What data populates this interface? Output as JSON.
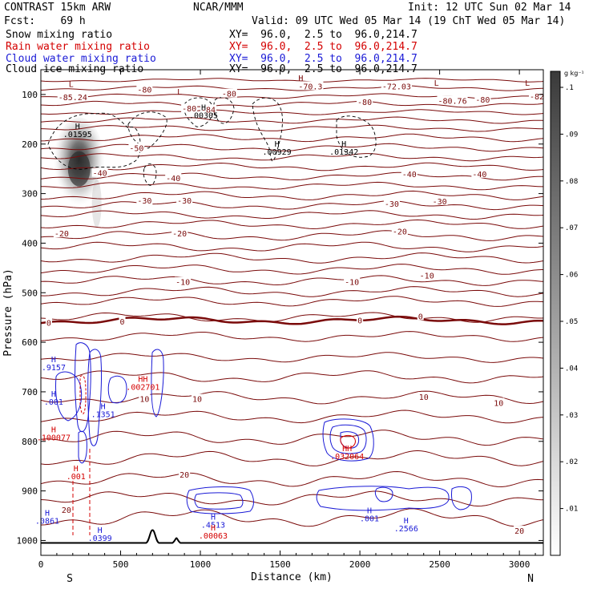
{
  "header": {
    "left_line1": "CONTRAST 15km ARW",
    "left_line2": "Fcst:    69 h",
    "center_line1": "NCAR/MMM",
    "init": "Init: 12 UTC Sun 02 Mar 14",
    "valid": "Valid: 09 UTC Wed 05 Mar 14 (19 ChT Wed 05 Mar 14)"
  },
  "fields": [
    {
      "name": "Snow mixing ratio",
      "xy": "XY=  96.0,  2.5 to  96.0,214.7",
      "color": "#000000"
    },
    {
      "name": "Rain water mixing ratio",
      "xy": "XY=  96.0,  2.5 to  96.0,214.7",
      "color": "#d40000"
    },
    {
      "name": "Cloud water mixing ratio",
      "xy": "XY=  96.0,  2.5 to  96.0,214.7",
      "color": "#1a1ad6"
    },
    {
      "name": "Cloud ice mixing ratio",
      "xy": "XY=  96.0,  2.5 to  96.0,214.7",
      "color": "#000000"
    }
  ],
  "colors": {
    "temperature": "#7a0a0a",
    "rain": "#d40000",
    "cloud_water": "#1a1ad6",
    "ice": "#000000",
    "terrain": "#000000"
  },
  "chart_data": {
    "type": "contour",
    "xlabel": "Distance (km)",
    "ylabel": "Pressure (hPa)",
    "xlim": [
      0,
      3150
    ],
    "ylim": [
      1030,
      50
    ],
    "x_ticks": [
      0,
      500,
      1000,
      1500,
      2000,
      2500,
      3000
    ],
    "x_tick_labels": [
      "0",
      "500",
      "1000",
      "1500",
      "2000",
      "2500",
      "3000"
    ],
    "y_ticks": [
      100,
      200,
      300,
      400,
      500,
      600,
      700,
      800,
      900,
      1000
    ],
    "y_tick_labels": [
      "100",
      "200",
      "300",
      "400",
      "500",
      "600",
      "700",
      "800",
      "900",
      "1000"
    ],
    "endpoints": {
      "start": "S",
      "end": "N"
    },
    "colorbar": {
      "unit": "g kg⁻¹",
      "ticks": [
        ".01",
        ".02",
        ".03",
        ".04",
        ".05",
        ".06",
        ".07",
        ".08",
        ".09",
        ".1"
      ]
    },
    "temperature_labels": [
      {
        "text": "-85.24",
        "x": 200,
        "p": 105
      },
      {
        "text": "-80",
        "x": 650,
        "p": 90
      },
      {
        "text": "-80",
        "x": 1180,
        "p": 98
      },
      {
        "text": "-80",
        "x": 930,
        "p": 128
      },
      {
        "text": "-84",
        "x": 1050,
        "p": 130
      },
      {
        "text": "-70.3",
        "x": 1690,
        "p": 83
      },
      {
        "text": "-72.03",
        "x": 2230,
        "p": 83
      },
      {
        "text": "-80",
        "x": 2030,
        "p": 115
      },
      {
        "text": "-80.76",
        "x": 2580,
        "p": 112
      },
      {
        "text": "-80",
        "x": 2770,
        "p": 110
      },
      {
        "text": "-82",
        "x": 3110,
        "p": 103
      },
      {
        "text": "-50",
        "x": 600,
        "p": 208
      },
      {
        "text": "-40",
        "x": 370,
        "p": 258
      },
      {
        "text": "-40",
        "x": 830,
        "p": 268
      },
      {
        "text": "-40",
        "x": 2310,
        "p": 260
      },
      {
        "text": "-40",
        "x": 2750,
        "p": 260
      },
      {
        "text": "-30",
        "x": 650,
        "p": 314
      },
      {
        "text": "-30",
        "x": 900,
        "p": 314
      },
      {
        "text": "-30",
        "x": 2200,
        "p": 320
      },
      {
        "text": "-30",
        "x": 2500,
        "p": 315
      },
      {
        "text": "-20",
        "x": 130,
        "p": 380
      },
      {
        "text": "-20",
        "x": 870,
        "p": 380
      },
      {
        "text": "-20",
        "x": 2250,
        "p": 376
      },
      {
        "text": "-10",
        "x": 890,
        "p": 478
      },
      {
        "text": "-10",
        "x": 1950,
        "p": 478
      },
      {
        "text": "-10",
        "x": 2420,
        "p": 465
      },
      {
        "text": "0",
        "x": 50,
        "p": 560
      },
      {
        "text": "0",
        "x": 510,
        "p": 558
      },
      {
        "text": "0",
        "x": 2000,
        "p": 555
      },
      {
        "text": "0",
        "x": 2380,
        "p": 547
      },
      {
        "text": "10",
        "x": 650,
        "p": 714
      },
      {
        "text": "10",
        "x": 980,
        "p": 714
      },
      {
        "text": "10",
        "x": 2400,
        "p": 710
      },
      {
        "text": "10",
        "x": 2870,
        "p": 722
      },
      {
        "text": "20",
        "x": 900,
        "p": 867
      },
      {
        "text": "20",
        "x": 160,
        "p": 938
      },
      {
        "text": "20",
        "x": 3000,
        "p": 980
      }
    ],
    "max_min_labels": [
      {
        "mark": "L",
        "value": "",
        "x": 190,
        "p": 85,
        "color": "#7a0a0a"
      },
      {
        "mark": "H",
        "value": ".01595",
        "x": 230,
        "p": 170,
        "color": "#000000"
      },
      {
        "mark": "L",
        "value": "",
        "x": 870,
        "p": 100,
        "color": "#7a0a0a"
      },
      {
        "mark": "H",
        "value": ".00305",
        "x": 1020,
        "p": 132,
        "color": "#000000"
      },
      {
        "mark": "H",
        "value": ".00929",
        "x": 1480,
        "p": 205,
        "color": "#000000"
      },
      {
        "mark": "H",
        "value": ".01342",
        "x": 1900,
        "p": 205,
        "color": "#000000"
      },
      {
        "mark": "H",
        "value": "",
        "x": 1630,
        "p": 73,
        "color": "#7a0a0a"
      },
      {
        "mark": "L",
        "value": "",
        "x": 2480,
        "p": 82,
        "color": "#7a0a0a"
      },
      {
        "mark": "L",
        "value": "",
        "x": 3050,
        "p": 82,
        "color": "#7a0a0a"
      },
      {
        "mark": "H",
        "value": ".9157",
        "x": 80,
        "p": 640,
        "color": "#1a1ad6"
      },
      {
        "mark": "H",
        "value": ".001",
        "x": 80,
        "p": 710,
        "color": "#1a1ad6"
      },
      {
        "mark": "H",
        "value": ".100077",
        "x": 80,
        "p": 782,
        "color": "#d40000"
      },
      {
        "mark": "H",
        "value": ".001",
        "x": 220,
        "p": 860,
        "color": "#d40000"
      },
      {
        "mark": "H",
        "value": ".1351",
        "x": 390,
        "p": 735,
        "color": "#1a1ad6"
      },
      {
        "mark": "HH",
        "value": ".002701",
        "x": 640,
        "p": 680,
        "color": "#d40000"
      },
      {
        "mark": "H",
        "value": ".0861",
        "x": 40,
        "p": 950,
        "color": "#1a1ad6"
      },
      {
        "mark": "H",
        "value": ".0399",
        "x": 370,
        "p": 985,
        "color": "#1a1ad6"
      },
      {
        "mark": "H",
        "value": ".4513",
        "x": 1080,
        "p": 958,
        "color": "#1a1ad6"
      },
      {
        "mark": "H",
        "value": ".00063",
        "x": 1080,
        "p": 980,
        "color": "#d40000"
      },
      {
        "mark": "HH",
        "value": ".032064",
        "x": 1920,
        "p": 820,
        "color": "#d40000"
      },
      {
        "mark": "H",
        "value": ".001",
        "x": 2060,
        "p": 945,
        "color": "#1a1ad6"
      },
      {
        "mark": "H",
        "value": ".2566",
        "x": 2290,
        "p": 965,
        "color": "#1a1ad6"
      }
    ],
    "snow_max_g_kg": 0.1,
    "terrain_peaks_km": [
      700,
      850
    ]
  }
}
